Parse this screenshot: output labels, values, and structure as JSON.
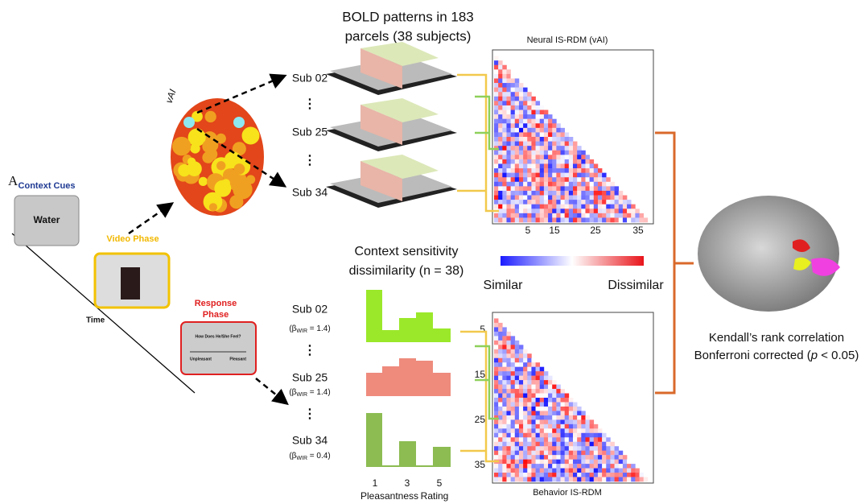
{
  "panel_label": "A",
  "task": {
    "context_title": "Context Cues",
    "context_word": "Water",
    "video_title": "Video Phase",
    "response_title": [
      "Response",
      "Phase"
    ],
    "response_question": "How Does He/She Feel?",
    "scale_left": "Unpleasant",
    "scale_right": "Pleasant",
    "time_label": "Time"
  },
  "brain_label": "vAI",
  "bold": {
    "title": [
      "BOLD patterns in 183",
      "parcels (38 subjects)"
    ],
    "subjects": [
      "Sub 02",
      "Sub 25",
      "Sub 34"
    ],
    "ellipsis": "⋮"
  },
  "neural_rdm": {
    "title": "Neural IS-RDM (vAI)",
    "ticks": [
      "5",
      "15",
      "25",
      "35"
    ]
  },
  "colorbar": {
    "low": "Similar",
    "high": "Dissimilar"
  },
  "behavior": {
    "title": [
      "Context sensitivity",
      "dissimilarity (n = 38)"
    ],
    "subjects": [
      {
        "name": "Sub 02",
        "beta": {
          "prefix": "(β",
          "sub": "WIR",
          "suffix": " = 1.4)"
        }
      },
      {
        "name": "Sub 25",
        "beta": {
          "prefix": "(β",
          "sub": "WIR",
          "suffix": " = 1.4)"
        }
      },
      {
        "name": "Sub 34",
        "beta": {
          "prefix": "(β",
          "sub": "WIR",
          "suffix": " = 0.4)"
        }
      }
    ],
    "hist_ticks": [
      "1",
      "3",
      "5"
    ],
    "hist_xlabel": [
      "Pleasantness",
      "Rating"
    ]
  },
  "behavior_rdm": {
    "title": "Behavior  IS-RDM",
    "ticks": [
      "5",
      "15",
      "25",
      "35"
    ]
  },
  "result": {
    "line1": "Kendall’s rank correlation",
    "line2": {
      "prefix": "Bonferroni corrected (",
      "italic": "p",
      "suffix": " < 0.05)"
    }
  }
}
